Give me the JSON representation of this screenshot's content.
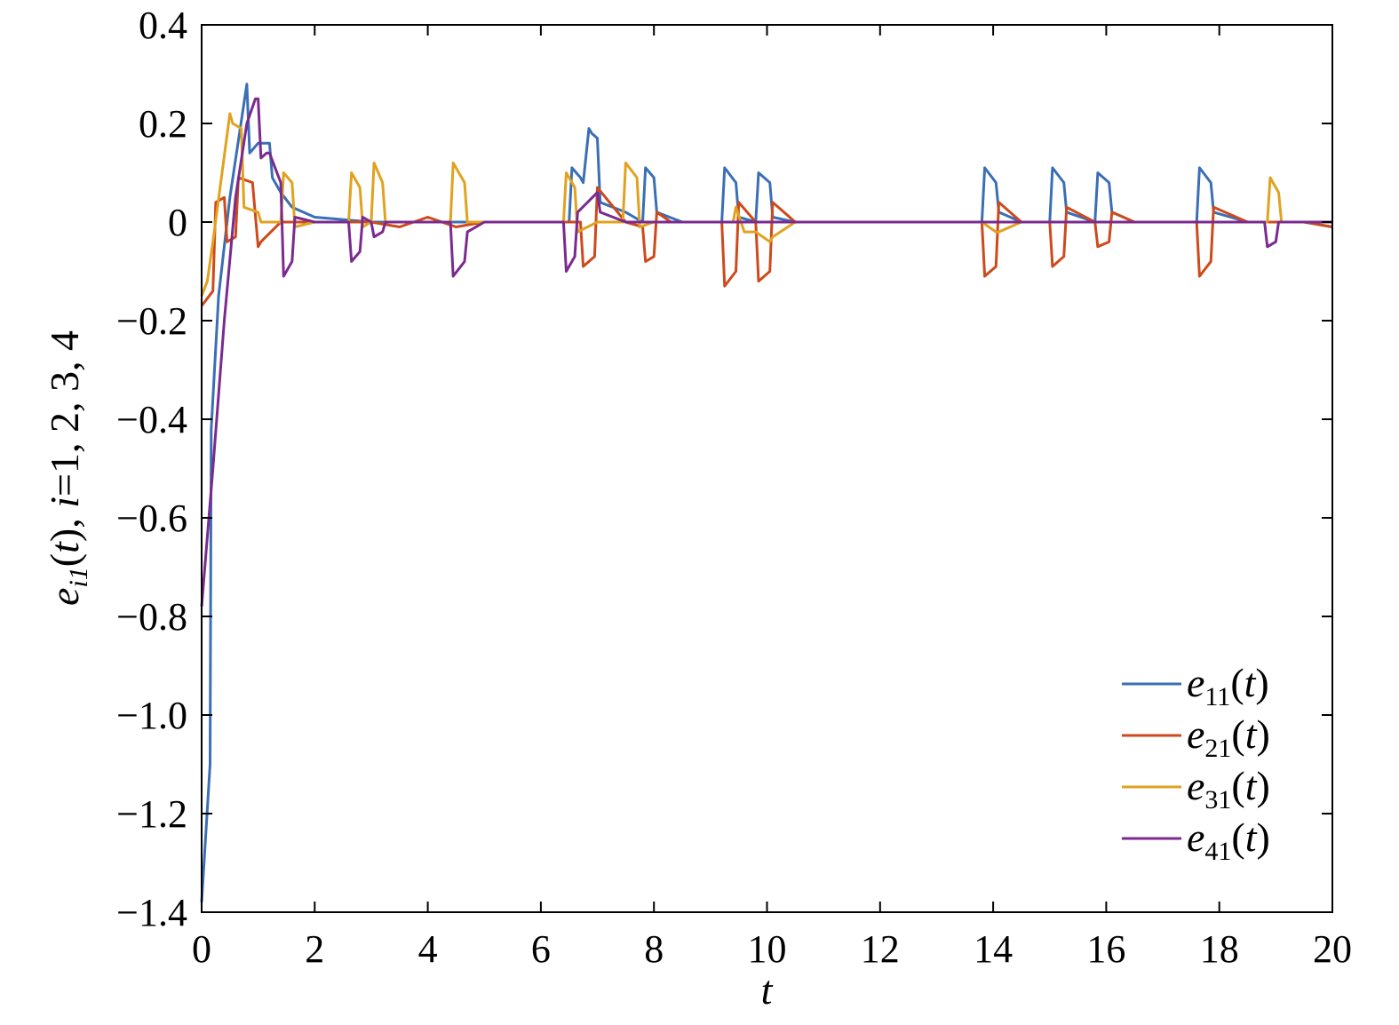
{
  "chart_data": {
    "type": "line",
    "title": "",
    "xlabel": "t",
    "ylabel": "e_i1(t), i=1, 2, 3, 4",
    "xlim": [
      0,
      20
    ],
    "ylim": [
      -1.4,
      0.4
    ],
    "xticks": [
      0,
      2,
      4,
      6,
      8,
      10,
      12,
      14,
      16,
      18,
      20
    ],
    "xtick_labels": [
      "0",
      "2",
      "4",
      "6",
      "8",
      "10",
      "12",
      "14",
      "16",
      "18",
      "20"
    ],
    "yticks": [
      0.4,
      0.2,
      0,
      -0.2,
      -0.4,
      -0.6,
      -0.8,
      -1.0,
      -1.2,
      -1.4
    ],
    "ytick_labels": [
      "0.4",
      "0.2",
      "0",
      "−0.2",
      "−0.4",
      "−0.6",
      "−0.8",
      "−1.0",
      "−1.2",
      "−1.4"
    ],
    "grid": false,
    "legend_position": "bottom-right",
    "series": [
      {
        "name": "e11(t)",
        "color": "#3a6fb5",
        "x": [
          0,
          0.15,
          0.17,
          0.3,
          0.5,
          0.8,
          0.85,
          1.0,
          1.05,
          1.2,
          1.25,
          1.4,
          1.6,
          2.0,
          2.5,
          3.0,
          4.0,
          5.0,
          6.0,
          6.5,
          6.55,
          6.7,
          6.75,
          6.85,
          6.9,
          7.0,
          7.05,
          7.5,
          7.8,
          7.85,
          8.0,
          8.05,
          8.5,
          9.2,
          9.25,
          9.45,
          9.5,
          9.8,
          9.85,
          10.05,
          10.1,
          10.5,
          11.0,
          12.0,
          13.0,
          13.8,
          13.85,
          14.05,
          14.1,
          14.5,
          15.0,
          15.05,
          15.25,
          15.3,
          15.8,
          15.85,
          16.05,
          16.1,
          16.5,
          17.0,
          17.6,
          17.65,
          17.85,
          17.9,
          18.5,
          19.0,
          19.5,
          20.0
        ],
        "y": [
          -1.38,
          -1.1,
          -0.42,
          -0.15,
          0.05,
          0.28,
          0.14,
          0.16,
          0.16,
          0.16,
          0.09,
          0.06,
          0.03,
          0.01,
          0.005,
          0.0,
          0.0,
          0.0,
          0.0,
          0.0,
          0.11,
          0.09,
          0.08,
          0.19,
          0.18,
          0.17,
          0.04,
          0.02,
          0.0,
          0.11,
          0.09,
          0.02,
          0.0,
          0.0,
          0.11,
          0.08,
          0.01,
          0.0,
          0.1,
          0.08,
          0.01,
          0.0,
          0.0,
          0.0,
          0.0,
          0.0,
          0.11,
          0.08,
          0.02,
          0.0,
          0.0,
          0.11,
          0.08,
          0.02,
          0.0,
          0.1,
          0.08,
          0.02,
          0.0,
          0.0,
          0.0,
          0.11,
          0.08,
          0.02,
          0.0,
          0.0,
          0.0,
          -0.01
        ]
      },
      {
        "name": "e21(t)",
        "color": "#cd4a1c",
        "x": [
          0,
          0.2,
          0.25,
          0.4,
          0.45,
          0.6,
          0.65,
          0.9,
          1.0,
          1.05,
          1.4,
          1.8,
          2.0,
          2.5,
          3.0,
          3.5,
          4.0,
          4.5,
          5.0,
          6.0,
          6.7,
          6.75,
          6.95,
          7.0,
          7.5,
          7.8,
          7.85,
          8.0,
          8.05,
          8.3,
          8.5,
          9.2,
          9.25,
          9.45,
          9.5,
          9.8,
          9.85,
          10.05,
          10.1,
          10.5,
          11.0,
          12.0,
          13.0,
          13.8,
          13.85,
          14.05,
          14.1,
          14.5,
          15.0,
          15.05,
          15.25,
          15.3,
          15.8,
          15.85,
          16.05,
          16.1,
          16.5,
          17.0,
          17.6,
          17.65,
          17.85,
          17.9,
          18.5,
          19.0,
          19.5,
          20.0
        ],
        "y": [
          -0.17,
          -0.14,
          0.04,
          0.05,
          -0.04,
          -0.03,
          0.09,
          0.08,
          -0.05,
          -0.04,
          0.0,
          0.0,
          0.0,
          0.0,
          0.0,
          -0.01,
          0.01,
          -0.01,
          0.0,
          0.0,
          0.0,
          -0.09,
          -0.07,
          0.07,
          0.0,
          -0.01,
          -0.08,
          -0.07,
          0.02,
          0.0,
          0.0,
          0.0,
          -0.13,
          -0.1,
          0.04,
          0.0,
          -0.12,
          -0.1,
          0.04,
          0.0,
          0.0,
          0.0,
          0.0,
          0.0,
          -0.11,
          -0.09,
          0.04,
          0.0,
          0.0,
          -0.09,
          -0.07,
          0.03,
          0.0,
          -0.05,
          -0.04,
          0.02,
          0.0,
          0.0,
          0.0,
          -0.11,
          -0.08,
          0.03,
          0.0,
          0.0,
          0.0,
          -0.01
        ]
      },
      {
        "name": "e31(t)",
        "color": "#e0a21f",
        "x": [
          0,
          0.1,
          0.2,
          0.5,
          0.55,
          0.7,
          0.75,
          1.0,
          1.05,
          1.4,
          1.45,
          1.6,
          1.65,
          2.0,
          2.6,
          2.65,
          2.8,
          2.85,
          3.0,
          3.05,
          3.2,
          3.25,
          3.5,
          4.4,
          4.45,
          4.65,
          4.7,
          5.0,
          6.0,
          6.4,
          6.45,
          6.6,
          6.65,
          7.0,
          7.45,
          7.5,
          7.7,
          7.75,
          8.0,
          9.4,
          9.45,
          9.6,
          9.8,
          10.05,
          10.1,
          10.5,
          11.0,
          13.8,
          14.05,
          14.1,
          14.5,
          15.0,
          18.85,
          18.9,
          19.05,
          19.1,
          19.5,
          20.0
        ],
        "y": [
          -0.15,
          -0.12,
          -0.04,
          0.22,
          0.2,
          0.19,
          0.03,
          0.02,
          0.0,
          0.0,
          0.1,
          0.08,
          -0.01,
          0.0,
          0.0,
          0.1,
          0.07,
          -0.01,
          0.0,
          0.12,
          0.08,
          0.0,
          0.0,
          0.0,
          0.12,
          0.08,
          0.0,
          0.0,
          0.0,
          0.0,
          0.1,
          0.07,
          -0.02,
          0.0,
          0.0,
          0.12,
          0.09,
          -0.01,
          0.0,
          0.0,
          0.03,
          -0.02,
          -0.02,
          -0.04,
          -0.03,
          0.0,
          0.0,
          0.0,
          -0.02,
          -0.02,
          0.0,
          0.0,
          0.0,
          0.09,
          0.06,
          0.0,
          0.0,
          0.0
        ]
      },
      {
        "name": "e41(t)",
        "color": "#7b2a8f",
        "x": [
          0,
          0.2,
          0.4,
          0.6,
          0.8,
          0.95,
          1.0,
          1.05,
          1.15,
          1.2,
          1.4,
          1.45,
          1.6,
          1.65,
          2.0,
          2.6,
          2.65,
          2.8,
          2.85,
          3.0,
          3.05,
          3.2,
          3.25,
          3.5,
          4.4,
          4.45,
          4.65,
          4.7,
          5.0,
          6.0,
          6.4,
          6.45,
          6.6,
          6.65,
          7.0,
          7.05,
          7.5,
          8.0,
          9.0,
          10.0,
          10.5,
          11.0,
          12.0,
          13.0,
          14.0,
          15.0,
          15.5,
          16.0,
          16.5,
          17.0,
          18.0,
          18.8,
          18.85,
          19.0,
          19.05,
          19.5,
          20.0
        ],
        "y": [
          -0.78,
          -0.5,
          -0.2,
          0.05,
          0.2,
          0.25,
          0.25,
          0.13,
          0.14,
          0.14,
          0.08,
          -0.11,
          -0.08,
          0.01,
          0.0,
          0.0,
          -0.08,
          -0.06,
          0.01,
          0.0,
          -0.03,
          -0.02,
          0.0,
          0.0,
          0.0,
          -0.11,
          -0.08,
          -0.02,
          0.0,
          0.0,
          0.0,
          -0.1,
          -0.07,
          0.02,
          0.06,
          0.02,
          0.0,
          0.0,
          0.0,
          0.0,
          0.0,
          0.0,
          0.0,
          0.0,
          0.0,
          0.0,
          0.0,
          0.0,
          0.0,
          0.0,
          0.0,
          0.0,
          -0.05,
          -0.04,
          0.0,
          0.0,
          0.0
        ]
      }
    ]
  },
  "legend": {
    "items": [
      {
        "base": "e",
        "sub": "11",
        "arg": "t"
      },
      {
        "base": "e",
        "sub": "21",
        "arg": "t"
      },
      {
        "base": "e",
        "sub": "31",
        "arg": "t"
      },
      {
        "base": "e",
        "sub": "41",
        "arg": "t"
      }
    ]
  },
  "ylabel_parts": {
    "e": "e",
    "sub": "i1",
    "paren_open": "(",
    "t": "t",
    "paren_close_comma": "), ",
    "i": "i",
    "rest": "=1, 2, 3, 4"
  },
  "xlabel_text": "t"
}
